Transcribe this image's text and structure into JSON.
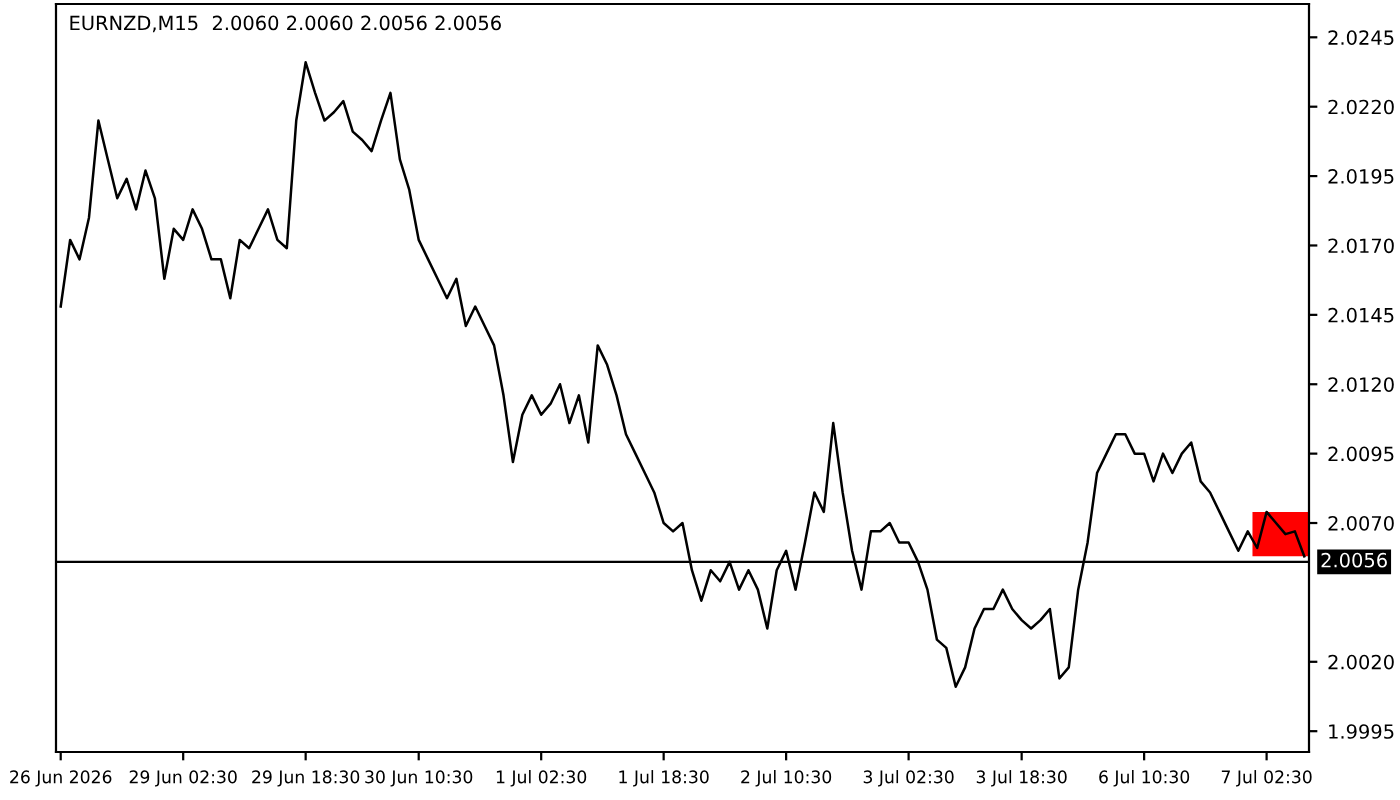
{
  "chart_data": {
    "type": "line",
    "title": "EURNZD,M15  2.0060 2.0060 2.0056 2.0056",
    "series": [
      {
        "color": "#000000",
        "values": [
          2.0148,
          2.0172,
          2.0165,
          2.018,
          2.0215,
          2.0201,
          2.0187,
          2.0194,
          2.0183,
          2.0197,
          2.0187,
          2.0158,
          2.0176,
          2.0172,
          2.0183,
          2.0176,
          2.0165,
          2.0165,
          2.0151,
          2.0172,
          2.0169,
          2.0176,
          2.0183,
          2.0172,
          2.0169,
          2.0215,
          2.0236,
          2.0225,
          2.0215,
          2.0218,
          2.0222,
          2.0211,
          2.0208,
          2.0204,
          2.0215,
          2.0225,
          2.0201,
          2.019,
          2.0172,
          2.0165,
          2.0158,
          2.0151,
          2.0158,
          2.0141,
          2.0148,
          2.0141,
          2.0134,
          2.0116,
          2.0092,
          2.0109,
          2.0116,
          2.0109,
          2.0113,
          2.012,
          2.0106,
          2.0116,
          2.0099,
          2.0134,
          2.0127,
          2.0116,
          2.0102,
          2.0095,
          2.0088,
          2.0081,
          2.007,
          2.0067,
          2.007,
          2.0053,
          2.0042,
          2.0053,
          2.0049,
          2.0056,
          2.0046,
          2.0053,
          2.0046,
          2.0032,
          2.0053,
          2.006,
          2.0046,
          2.0063,
          2.0081,
          2.0074,
          2.0106,
          2.0081,
          2.006,
          2.0046,
          2.0067,
          2.0067,
          2.007,
          2.0063,
          2.0063,
          2.0056,
          2.0046,
          2.0028,
          2.0025,
          2.0011,
          2.0018,
          2.0032,
          2.0039,
          2.0039,
          2.0046,
          2.0039,
          2.0035,
          2.0032,
          2.0035,
          2.0039,
          2.0014,
          2.0018,
          2.0046,
          2.0063,
          2.0088,
          2.0095,
          2.0102,
          2.0102,
          2.0095,
          2.0095,
          2.0085,
          2.0095,
          2.0088,
          2.0095,
          2.0099,
          2.0085,
          2.0081,
          2.0074,
          2.0067,
          2.006,
          2.0067,
          2.0061,
          2.0074,
          2.007,
          2.0066,
          2.0067,
          2.0058
        ]
      }
    ],
    "categories": [
      "26 Jun 2026",
      null,
      null,
      null,
      null,
      null,
      null,
      null,
      null,
      null,
      null,
      null,
      null,
      "29 Jun 02:30",
      null,
      null,
      null,
      null,
      null,
      null,
      null,
      null,
      null,
      null,
      null,
      null,
      "29 Jun 18:30",
      null,
      null,
      null,
      null,
      null,
      null,
      null,
      null,
      null,
      null,
      null,
      "30 Jun 10:30",
      null,
      null,
      null,
      null,
      null,
      null,
      null,
      null,
      null,
      null,
      null,
      null,
      "1 Jul 02:30",
      null,
      null,
      null,
      null,
      null,
      null,
      null,
      null,
      null,
      null,
      null,
      null,
      "1 Jul 18:30",
      null,
      null,
      null,
      null,
      null,
      null,
      null,
      null,
      null,
      null,
      null,
      null,
      "2 Jul 10:30",
      null,
      null,
      null,
      null,
      null,
      null,
      null,
      null,
      null,
      null,
      null,
      null,
      "3 Jul 02:30",
      null,
      null,
      null,
      null,
      null,
      null,
      null,
      null,
      null,
      null,
      null,
      "3 Jul 18:30",
      null,
      null,
      null,
      null,
      null,
      null,
      null,
      null,
      null,
      null,
      null,
      null,
      "6 Jul 10:30",
      null,
      null,
      null,
      null,
      null,
      null,
      null,
      null,
      null,
      null,
      null,
      null,
      "7 Jul 02:30",
      null,
      null,
      null,
      null
    ],
    "ylim": [
      1.99875,
      2.0257
    ],
    "yticks": [
      {
        "value": 2.0245,
        "label": "2.0245"
      },
      {
        "value": 2.022,
        "label": "2.0220"
      },
      {
        "value": 2.0195,
        "label": "2.0195"
      },
      {
        "value": 2.017,
        "label": "2.0170"
      },
      {
        "value": 2.0145,
        "label": "2.0145"
      },
      {
        "value": 2.012,
        "label": "2.0120"
      },
      {
        "value": 2.0095,
        "label": "2.0095"
      },
      {
        "value": 2.007,
        "label": "2.0070"
      },
      {
        "value": 2.002,
        "label": "2.0020"
      },
      {
        "value": 1.9995,
        "label": "1.9995"
      }
    ],
    "ref_lines": [
      {
        "axis": "y",
        "value": 2.0056,
        "label": "2.0056",
        "color": "#000000"
      }
    ],
    "grid": false
  }
}
